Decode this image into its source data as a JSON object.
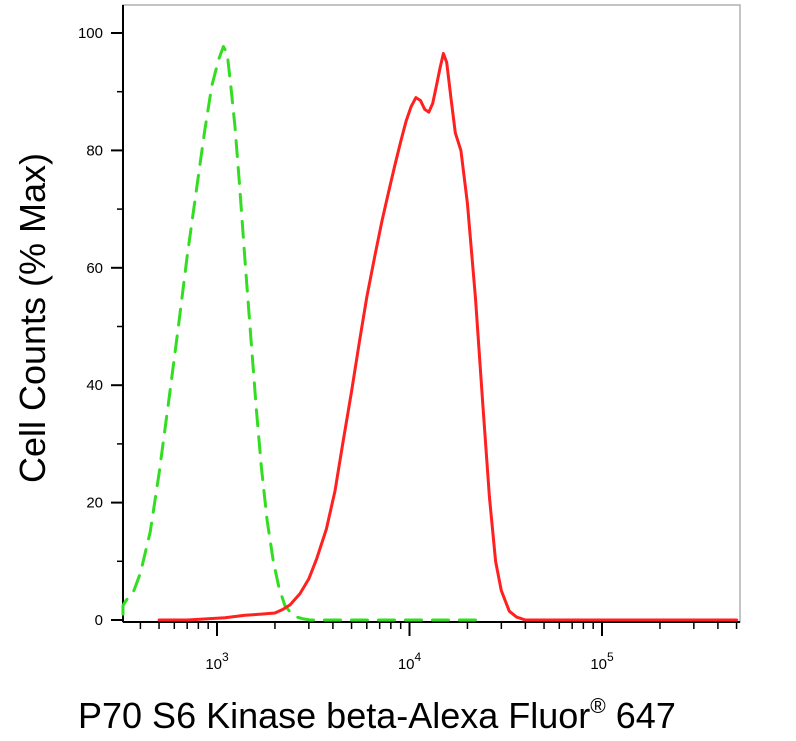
{
  "chart_data": {
    "type": "line",
    "title": "",
    "xlabel": "P70 S6 Kinase beta-Alexa Fluor",
    "xlabel_superscript": "®",
    "xlabel_suffix": " 647",
    "ylabel": "Cell Counts (% Max)",
    "x_scale": "log",
    "xlim": [
      250,
      500000
    ],
    "ylim": [
      0,
      105
    ],
    "grid": false,
    "legend": "none",
    "y_ticks": [
      0,
      20,
      40,
      60,
      80,
      100
    ],
    "y_tick_labels": [
      "0",
      "20",
      "40",
      "60",
      "80",
      "100"
    ],
    "x_ticks": [
      1000,
      10000,
      100000
    ],
    "x_tick_labels": [
      {
        "base": "10",
        "exp": "3"
      },
      {
        "base": "10",
        "exp": "4"
      },
      {
        "base": "10",
        "exp": "5"
      }
    ],
    "series": [
      {
        "color": "#33dd22",
        "style": "dashed",
        "x": [
          250,
          280,
          310,
          340,
          370,
          400,
          450,
          500,
          560,
          630,
          700,
          780,
          860,
          940,
          1020,
          1080,
          1130,
          1180,
          1240,
          1310,
          1400,
          1500,
          1600,
          1700,
          1820,
          1960,
          2100,
          2250,
          2420,
          2600,
          2800,
          3050,
          3300,
          3600,
          4000,
          5000,
          8000,
          12000,
          16000,
          25000
        ],
        "y": [
          1,
          1.5,
          2.5,
          3.5,
          5,
          8,
          15,
          25,
          37,
          50,
          62,
          73,
          83,
          91,
          95.5,
          97.7,
          96.5,
          91,
          84,
          74,
          61,
          48,
          36,
          26,
          17,
          10,
          5.5,
          2.5,
          1.2,
          0.5,
          0.2,
          0,
          0,
          0,
          0,
          0,
          0,
          0,
          0,
          0
        ]
      },
      {
        "color": "#ff2020",
        "style": "solid",
        "x": [
          500,
          700,
          900,
          1100,
          1400,
          1700,
          2000,
          2200,
          2400,
          2700,
          3000,
          3300,
          3700,
          4100,
          4500,
          5000,
          5500,
          6000,
          6600,
          7200,
          7800,
          8400,
          9000,
          9600,
          10200,
          10800,
          11400,
          12000,
          12600,
          13200,
          13800,
          14400,
          15000,
          15600,
          16400,
          17300,
          18500,
          20000,
          22000,
          24000,
          26000,
          28000,
          30000,
          33000,
          36000,
          40000,
          45000,
          50000,
          60000,
          100000,
          200000,
          500000
        ],
        "y": [
          0,
          0,
          0.2,
          0.4,
          0.8,
          1,
          1.2,
          1.8,
          2.6,
          4.5,
          7,
          10.5,
          15.5,
          22,
          30,
          39,
          47.5,
          55,
          62,
          68,
          73,
          77.5,
          81.5,
          85,
          87.5,
          89,
          88.5,
          87,
          86.5,
          88,
          91,
          94,
          96.5,
          95,
          89,
          83,
          80,
          71,
          55,
          37,
          21,
          10,
          5,
          1.5,
          0.5,
          0,
          0,
          0,
          0,
          0,
          0,
          0
        ]
      }
    ]
  }
}
